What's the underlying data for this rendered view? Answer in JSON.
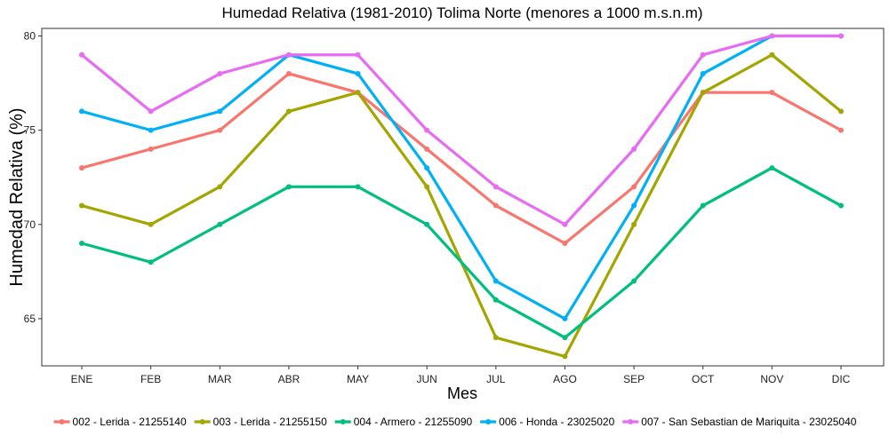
{
  "chart_data": {
    "type": "line",
    "title": "Humedad Relativa (1981-2010) Tolima Norte (menores a 1000 m.s.n.m)",
    "xlabel": "Mes",
    "ylabel": "Humedad Relativa (%)",
    "categories": [
      "ENE",
      "FEB",
      "MAR",
      "ABR",
      "MAY",
      "JUN",
      "JUL",
      "AGO",
      "SEP",
      "OCT",
      "NOV",
      "DIC"
    ],
    "ylim": [
      62.5,
      80.4
    ],
    "yticks": [
      65,
      70,
      75,
      80
    ],
    "grid": false,
    "legend_position": "bottom",
    "series": [
      {
        "name": "002 - Lerida - 21255140",
        "color": "#F8766D",
        "values": [
          73,
          74,
          75,
          78,
          77,
          74,
          71,
          69,
          72,
          77,
          77,
          75
        ]
      },
      {
        "name": "003 - Lerida - 21255150",
        "color": "#A3A500",
        "values": [
          71,
          70,
          72,
          76,
          77,
          72,
          64,
          63,
          70,
          77,
          79,
          76
        ]
      },
      {
        "name": "004 - Armero - 21255090",
        "color": "#00BF7D",
        "values": [
          69,
          68,
          70,
          72,
          72,
          70,
          66,
          64,
          67,
          71,
          73,
          71
        ]
      },
      {
        "name": "006 - Honda - 23025020",
        "color": "#00B0F6",
        "values": [
          76,
          75,
          76,
          79,
          78,
          73,
          67,
          65,
          71,
          78,
          80,
          80
        ]
      },
      {
        "name": "007 - San Sebastian de Mariquita - 23025040",
        "color": "#E76BF3",
        "values": [
          79,
          76,
          78,
          79,
          79,
          75,
          72,
          70,
          74,
          79,
          80,
          80
        ]
      }
    ]
  }
}
